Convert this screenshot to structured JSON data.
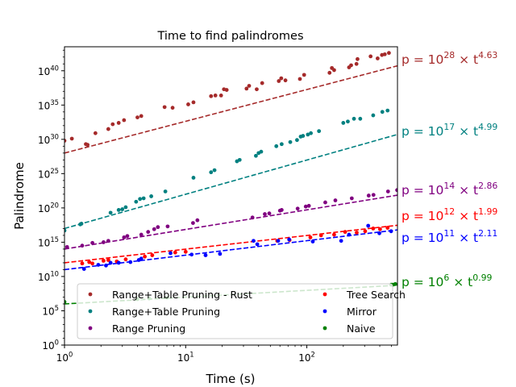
{
  "chart_data": {
    "type": "scatter",
    "title": "Time to find palindromes",
    "xlabel": "Time (s)",
    "ylabel": "Palindrome",
    "xscale": "log",
    "yscale": "log",
    "xlim": [
      1,
      560
    ],
    "ylim_log10": [
      0,
      43.5
    ],
    "x_ticks": [
      {
        "value": 1,
        "mant": "10",
        "exp": "0"
      },
      {
        "value": 10,
        "mant": "10",
        "exp": "1"
      },
      {
        "value": 100,
        "mant": "10",
        "exp": "2"
      }
    ],
    "y_ticks": [
      {
        "log10": 0,
        "mant": "10",
        "exp": "0"
      },
      {
        "log10": 5,
        "mant": "10",
        "exp": "5"
      },
      {
        "log10": 10,
        "mant": "10",
        "exp": "10"
      },
      {
        "log10": 15,
        "mant": "10",
        "exp": "15"
      },
      {
        "log10": 20,
        "mant": "10",
        "exp": "20"
      },
      {
        "log10": 25,
        "mant": "10",
        "exp": "25"
      },
      {
        "log10": 30,
        "mant": "10",
        "exp": "30"
      },
      {
        "log10": 35,
        "mant": "10",
        "exp": "35"
      },
      {
        "log10": 40,
        "mant": "10",
        "exp": "40"
      }
    ],
    "legend_position": "lower-center",
    "grid": false,
    "series": [
      {
        "name": "Range+Table Pruning - Rust",
        "color": "#a52a2a",
        "fit": {
          "coef_exp": "28",
          "t_exp": "4.63",
          "log10_coef": 28.0,
          "slope": 4.63
        },
        "points": [
          [
            1.0,
            29.8
          ],
          [
            1.15,
            30.1
          ],
          [
            1.5,
            29.3
          ],
          [
            1.55,
            29.2
          ],
          [
            1.8,
            30.9
          ],
          [
            2.3,
            31.5
          ],
          [
            2.5,
            32.2
          ],
          [
            2.8,
            32.4
          ],
          [
            3.1,
            32.8
          ],
          [
            4.0,
            33.2
          ],
          [
            4.3,
            33.4
          ],
          [
            6.7,
            34.7
          ],
          [
            7.8,
            34.6
          ],
          [
            10.5,
            35.1
          ],
          [
            11.6,
            35.4
          ],
          [
            16.2,
            36.3
          ],
          [
            17.6,
            36.4
          ],
          [
            19.6,
            36.4
          ],
          [
            20.7,
            37.3
          ],
          [
            21.8,
            37.2
          ],
          [
            31.8,
            37.4
          ],
          [
            33.4,
            37.8
          ],
          [
            38.6,
            37.3
          ],
          [
            42.8,
            38.2
          ],
          [
            58.7,
            38.5
          ],
          [
            61.5,
            38.9
          ],
          [
            66.6,
            38.6
          ],
          [
            87.7,
            38.8
          ],
          [
            95.0,
            39.4
          ],
          [
            154.0,
            39.7
          ],
          [
            161.0,
            40.4
          ],
          [
            168.0,
            40.1
          ],
          [
            223.0,
            40.5
          ],
          [
            232.0,
            40.8
          ],
          [
            257.0,
            41.0
          ],
          [
            262.0,
            41.7
          ],
          [
            336.0,
            42.1
          ],
          [
            384.0,
            41.8
          ],
          [
            417.0,
            42.3
          ],
          [
            440.0,
            42.4
          ],
          [
            476.0,
            42.6
          ]
        ]
      },
      {
        "name": "Range+Table Pruning",
        "color": "#008080",
        "fit": {
          "coef_exp": "17",
          "t_exp": "4.99",
          "log10_coef": 17.0,
          "slope": 4.99
        },
        "points": [
          [
            1.0,
            16.7
          ],
          [
            1.35,
            17.6
          ],
          [
            1.38,
            17.7
          ],
          [
            2.4,
            19.3
          ],
          [
            2.8,
            19.7
          ],
          [
            3.0,
            19.8
          ],
          [
            3.2,
            20.1
          ],
          [
            3.9,
            20.9
          ],
          [
            4.2,
            21.3
          ],
          [
            4.5,
            21.4
          ],
          [
            5.2,
            21.7
          ],
          [
            6.8,
            22.4
          ],
          [
            11.6,
            24.4
          ],
          [
            16.2,
            25.2
          ],
          [
            17.3,
            25.5
          ],
          [
            26.5,
            26.8
          ],
          [
            27.9,
            27.0
          ],
          [
            38.0,
            27.6
          ],
          [
            40.0,
            28.0
          ],
          [
            42.0,
            28.2
          ],
          [
            56.0,
            29.0
          ],
          [
            62.0,
            29.3
          ],
          [
            73.0,
            29.6
          ],
          [
            83.0,
            29.9
          ],
          [
            89.0,
            30.4
          ],
          [
            93.0,
            30.5
          ],
          [
            102.0,
            30.7
          ],
          [
            108.0,
            30.9
          ],
          [
            126.0,
            31.2
          ],
          [
            200.0,
            32.4
          ],
          [
            218.0,
            32.6
          ],
          [
            245.0,
            33.0
          ],
          [
            276.0,
            33.0
          ],
          [
            353.0,
            33.5
          ],
          [
            420.0,
            34.0
          ],
          [
            464.0,
            34.2
          ]
        ]
      },
      {
        "name": "Range Pruning",
        "color": "#800080",
        "fit": {
          "coef_exp": "14",
          "t_exp": "2.86",
          "log10_coef": 14.0,
          "slope": 2.86
        },
        "points": [
          [
            1.05,
            14.3
          ],
          [
            1.4,
            14.5
          ],
          [
            1.7,
            14.9
          ],
          [
            2.1,
            15.0
          ],
          [
            2.3,
            15.2
          ],
          [
            3.1,
            15.7
          ],
          [
            3.3,
            15.9
          ],
          [
            4.3,
            16.1
          ],
          [
            4.9,
            16.5
          ],
          [
            5.5,
            16.9
          ],
          [
            5.9,
            17.2
          ],
          [
            7.1,
            17.3
          ],
          [
            11.5,
            17.8
          ],
          [
            12.5,
            18.2
          ],
          [
            35.6,
            18.6
          ],
          [
            45.0,
            19.1
          ],
          [
            49.0,
            19.2
          ],
          [
            60.0,
            19.6
          ],
          [
            62.0,
            19.7
          ],
          [
            84.0,
            19.9
          ],
          [
            98.0,
            20.2
          ],
          [
            104.0,
            20.3
          ],
          [
            142.0,
            20.8
          ],
          [
            172.0,
            21.1
          ],
          [
            235.0,
            21.4
          ],
          [
            324.0,
            21.8
          ],
          [
            355.0,
            21.9
          ],
          [
            468.0,
            22.4
          ],
          [
            556.0,
            22.6
          ]
        ]
      },
      {
        "name": "Tree Search",
        "color": "#ff0000",
        "fit": {
          "coef_exp": "12",
          "t_exp": "1.99",
          "log10_coef": 12.0,
          "slope": 1.99
        },
        "points": [
          [
            1.4,
            11.9
          ],
          [
            1.6,
            12.1
          ],
          [
            1.7,
            11.9
          ],
          [
            2.1,
            12.3
          ],
          [
            2.3,
            12.4
          ],
          [
            2.7,
            12.2
          ],
          [
            3.2,
            12.5
          ],
          [
            4.6,
            12.9
          ],
          [
            5.3,
            13.1
          ],
          [
            8.2,
            13.5
          ],
          [
            10.0,
            13.6
          ],
          [
            57.0,
            15.2
          ],
          [
            72.0,
            15.3
          ],
          [
            107.0,
            15.7
          ],
          [
            131.0,
            16.0
          ],
          [
            168.0,
            16.1
          ],
          [
            207.0,
            16.5
          ],
          [
            258.0,
            16.4
          ],
          [
            303.0,
            16.6
          ],
          [
            353.0,
            17.0
          ],
          [
            402.0,
            16.9
          ],
          [
            464.0,
            17.1
          ]
        ]
      },
      {
        "name": "Mirror",
        "color": "#0000ff",
        "fit": {
          "coef_exp": "11",
          "t_exp": "2.11",
          "log10_coef": 11.0,
          "slope": 2.11
        },
        "points": [
          [
            1.45,
            11.1
          ],
          [
            1.9,
            11.7
          ],
          [
            2.2,
            11.6
          ],
          [
            2.4,
            12.0
          ],
          [
            2.8,
            12.0
          ],
          [
            3.5,
            12.1
          ],
          [
            4.1,
            12.4
          ],
          [
            4.3,
            12.6
          ],
          [
            7.5,
            13.4
          ],
          [
            11.2,
            13.2
          ],
          [
            14.6,
            13.1
          ],
          [
            19.2,
            13.3
          ],
          [
            36.3,
            15.2
          ],
          [
            39.0,
            14.7
          ],
          [
            58.0,
            15.2
          ],
          [
            71.5,
            15.4
          ],
          [
            112.0,
            15.1
          ],
          [
            192.0,
            15.2
          ],
          [
            223.0,
            16.1
          ],
          [
            321.0,
            17.4
          ],
          [
            397.0,
            16.3
          ],
          [
            496.0,
            16.6
          ]
        ]
      },
      {
        "name": "Naive",
        "color": "#008000",
        "fit": {
          "coef_exp": "6",
          "t_exp": "0.99",
          "log10_coef": 6.0,
          "slope": 0.99
        },
        "points": [
          [
            1.0,
            6.3
          ],
          [
            4.0,
            6.7
          ],
          [
            5.0,
            6.8
          ],
          [
            7.0,
            6.9
          ],
          [
            497.0,
            8.8
          ],
          [
            512.0,
            8.8
          ],
          [
            537.0,
            8.9
          ]
        ]
      }
    ],
    "legend_order": [
      0,
      3,
      1,
      4,
      2,
      5
    ]
  }
}
